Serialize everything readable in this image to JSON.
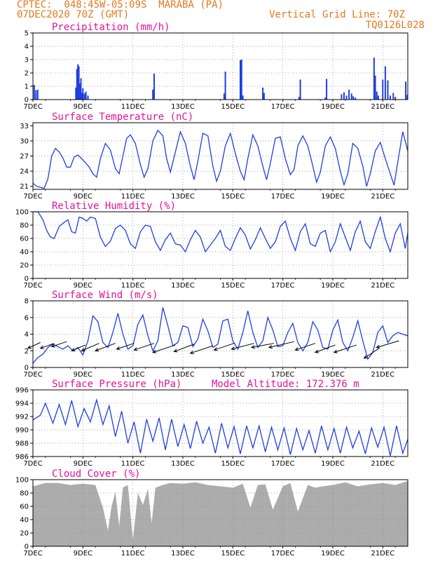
{
  "header": {
    "line1_left": "CPTEC:  048:45W-05:09S  MARABA (PA)",
    "line2_left": "07DEC2020 70Z (GMT)",
    "line1_right": "Vertical Grid Line: 70Z",
    "line2_right": "TQ0126L028"
  },
  "colors": {
    "header": "#e07a1f",
    "title": "#e8109a",
    "series": "#1f3fe0",
    "cloud": "#a8a8a8"
  },
  "x_axis": {
    "unit": "days since 07DEC",
    "range": [
      0,
      15
    ],
    "tick_positions": [
      0,
      2,
      4,
      6,
      8,
      10,
      12,
      14
    ],
    "tick_labels": [
      "7DEC",
      "9DEC",
      "11DEC",
      "13DEC",
      "15DEC",
      "17DEC",
      "19DEC",
      "21DEC"
    ]
  },
  "chart_data": [
    {
      "id": "precip",
      "type": "bar",
      "title": "Precipitation (mm/h)",
      "ylim": [
        0,
        5
      ],
      "yticks": [
        0,
        1,
        2,
        3,
        4,
        5
      ],
      "x": [
        0.05,
        0.12,
        0.19,
        1.72,
        1.76,
        1.8,
        1.84,
        1.88,
        1.92,
        1.96,
        2.0,
        2.06,
        2.12,
        2.2,
        4.8,
        4.85,
        7.65,
        7.7,
        8.3,
        8.35,
        8.4,
        9.2,
        9.25,
        10.65,
        10.7,
        11.7,
        11.75,
        12.35,
        12.45,
        12.55,
        12.65,
        12.75,
        12.82,
        12.9,
        13.65,
        13.7,
        13.76,
        13.82,
        14.0,
        14.1,
        14.2,
        14.3,
        14.42,
        14.5,
        14.92,
        14.98
      ],
      "values": [
        1.1,
        0.7,
        0.75,
        0.9,
        2.3,
        2.65,
        2.5,
        1.2,
        1.6,
        0.5,
        0.85,
        0.45,
        0.6,
        0.3,
        0.75,
        1.95,
        0.45,
        2.1,
        2.95,
        3.0,
        0.3,
        0.9,
        0.5,
        0.2,
        1.5,
        0.15,
        1.55,
        0.4,
        0.55,
        0.3,
        0.75,
        0.45,
        0.25,
        0.15,
        3.15,
        1.8,
        0.6,
        0.3,
        1.5,
        2.5,
        1.45,
        0.3,
        0.5,
        0.2,
        1.35,
        0.35
      ]
    },
    {
      "id": "temp",
      "type": "line",
      "title": "Surface Temperature (nC)",
      "ylim": [
        20.4,
        33.6
      ],
      "yticks": [
        21,
        24,
        27,
        30,
        33
      ],
      "x": [
        0,
        0.15,
        0.3,
        0.45,
        0.6,
        0.75,
        0.9,
        1.05,
        1.2,
        1.35,
        1.5,
        1.65,
        1.8,
        1.95,
        2.1,
        2.25,
        2.4,
        2.55,
        2.7,
        2.9,
        3.1,
        3.3,
        3.45,
        3.6,
        3.75,
        3.9,
        4.1,
        4.3,
        4.45,
        4.6,
        4.8,
        5.0,
        5.2,
        5.35,
        5.5,
        5.7,
        5.9,
        6.1,
        6.3,
        6.45,
        6.6,
        6.8,
        7.0,
        7.2,
        7.35,
        7.5,
        7.7,
        7.9,
        8.1,
        8.3,
        8.45,
        8.6,
        8.8,
        9.0,
        9.2,
        9.35,
        9.5,
        9.7,
        9.9,
        10.1,
        10.3,
        10.45,
        10.6,
        10.8,
        11.0,
        11.2,
        11.35,
        11.5,
        11.7,
        11.9,
        12.1,
        12.3,
        12.45,
        12.6,
        12.8,
        13.0,
        13.2,
        13.35,
        13.5,
        13.7,
        13.9,
        14.1,
        14.3,
        14.45,
        14.6,
        14.8,
        15.0
      ],
      "values": [
        21.6,
        21.0,
        20.8,
        20.6,
        22.5,
        27.0,
        28.5,
        27.8,
        26.6,
        24.8,
        24.8,
        26.8,
        27.2,
        26.5,
        25.7,
        24.8,
        23.5,
        22.8,
        26.5,
        29.5,
        28.2,
        24.5,
        23.5,
        27.0,
        30.5,
        31.2,
        29.5,
        25.3,
        22.8,
        24.5,
        30.0,
        32.1,
        31.0,
        26.5,
        23.8,
        27.8,
        31.8,
        29.5,
        25.0,
        22.3,
        26.0,
        31.5,
        31.0,
        25.0,
        22.0,
        24.0,
        29.0,
        31.5,
        27.5,
        24.0,
        22.3,
        26.5,
        31.2,
        29.0,
        25.0,
        22.3,
        25.5,
        30.5,
        30.8,
        26.5,
        23.3,
        24.3,
        29.0,
        31.0,
        29.0,
        25.0,
        21.8,
        23.8,
        29.0,
        30.8,
        28.5,
        24.0,
        21.3,
        23.5,
        29.5,
        28.5,
        25.0,
        21.0,
        23.5,
        28.0,
        29.7,
        26.5,
        23.5,
        21.2,
        25.8,
        31.8,
        28.0
      ]
    },
    {
      "id": "rh",
      "type": "line",
      "title": "Relative Humidity (%)",
      "ylim": [
        0,
        100
      ],
      "yticks": [
        0,
        20,
        40,
        60,
        80,
        100
      ],
      "x": [
        0,
        0.2,
        0.4,
        0.55,
        0.7,
        0.85,
        1.05,
        1.25,
        1.4,
        1.55,
        1.7,
        1.85,
        2.0,
        2.15,
        2.3,
        2.5,
        2.7,
        2.9,
        3.1,
        3.3,
        3.5,
        3.7,
        3.9,
        4.1,
        4.3,
        4.5,
        4.7,
        4.9,
        5.1,
        5.3,
        5.5,
        5.7,
        5.9,
        6.1,
        6.3,
        6.5,
        6.7,
        6.9,
        7.1,
        7.3,
        7.5,
        7.7,
        7.9,
        8.1,
        8.3,
        8.5,
        8.7,
        8.9,
        9.1,
        9.3,
        9.5,
        9.7,
        9.9,
        10.1,
        10.3,
        10.5,
        10.7,
        10.9,
        11.1,
        11.3,
        11.5,
        11.7,
        11.9,
        12.1,
        12.3,
        12.5,
        12.7,
        12.9,
        13.1,
        13.3,
        13.5,
        13.7,
        13.9,
        14.1,
        14.3,
        14.5,
        14.7,
        14.9,
        15.0
      ],
      "values": [
        100,
        100,
        88,
        72,
        62,
        60,
        78,
        84,
        88,
        70,
        68,
        92,
        90,
        86,
        92,
        90,
        62,
        48,
        56,
        75,
        80,
        72,
        52,
        45,
        70,
        80,
        78,
        55,
        42,
        58,
        68,
        52,
        50,
        40,
        58,
        72,
        62,
        40,
        50,
        60,
        72,
        48,
        42,
        60,
        76,
        65,
        44,
        58,
        76,
        60,
        45,
        55,
        78,
        86,
        60,
        42,
        70,
        82,
        52,
        48,
        68,
        72,
        40,
        55,
        82,
        62,
        42,
        70,
        86,
        55,
        45,
        70,
        92,
        60,
        40,
        68,
        82,
        45,
        68
      ]
    },
    {
      "id": "wind",
      "type": "line",
      "title": "Surface Wind (m/s)",
      "ylim": [
        0,
        8
      ],
      "yticks": [
        0,
        2,
        4,
        6,
        8
      ],
      "x": [
        0,
        0.2,
        0.4,
        0.6,
        0.8,
        1.0,
        1.2,
        1.4,
        1.6,
        1.8,
        2.0,
        2.2,
        2.4,
        2.6,
        2.8,
        3.0,
        3.2,
        3.4,
        3.6,
        3.8,
        4.0,
        4.2,
        4.4,
        4.6,
        4.8,
        5.0,
        5.2,
        5.4,
        5.6,
        5.8,
        6.0,
        6.2,
        6.4,
        6.6,
        6.8,
        7.0,
        7.2,
        7.4,
        7.6,
        7.8,
        8.0,
        8.2,
        8.4,
        8.6,
        8.8,
        9.0,
        9.2,
        9.4,
        9.6,
        9.8,
        10.0,
        10.2,
        10.4,
        10.6,
        10.8,
        11.0,
        11.2,
        11.4,
        11.6,
        11.8,
        12.0,
        12.2,
        12.4,
        12.6,
        12.8,
        13.0,
        13.2,
        13.4,
        13.6,
        13.8,
        14.0,
        14.2,
        14.4,
        14.6,
        14.8,
        15.0
      ],
      "values": [
        0.5,
        1.2,
        1.6,
        2.4,
        2.8,
        2.5,
        2.2,
        2.6,
        2.0,
        2.4,
        1.5,
        3.2,
        6.2,
        5.5,
        3.0,
        2.4,
        4.2,
        6.5,
        4.0,
        2.2,
        2.6,
        5.2,
        6.3,
        3.8,
        2.0,
        3.2,
        7.2,
        5.0,
        2.6,
        3.0,
        5.0,
        4.8,
        2.5,
        3.4,
        5.8,
        4.4,
        2.4,
        2.8,
        5.6,
        5.8,
        3.2,
        2.2,
        4.2,
        6.8,
        4.2,
        2.4,
        3.2,
        6.0,
        4.5,
        2.5,
        2.6,
        4.2,
        5.3,
        3.0,
        2.0,
        3.0,
        5.5,
        4.5,
        2.4,
        2.2,
        4.5,
        5.7,
        3.0,
        2.0,
        3.6,
        5.6,
        3.2,
        1.0,
        1.8,
        4.2,
        5.0,
        3.0,
        3.8,
        4.2,
        4.0,
        3.8
      ],
      "arrows": [
        {
          "x": 0.3,
          "y": 3.0,
          "dx": -0.5,
          "dy": -0.7
        },
        {
          "x": 0.85,
          "y": 2.9,
          "dx": -0.55,
          "dy": -0.6
        },
        {
          "x": 1.35,
          "y": 3.1,
          "dx": -0.6,
          "dy": -0.6
        },
        {
          "x": 2.1,
          "y": 2.7,
          "dx": -0.55,
          "dy": -0.7
        },
        {
          "x": 2.65,
          "y": 2.9,
          "dx": -0.7,
          "dy": -0.9
        },
        {
          "x": 3.3,
          "y": 2.9,
          "dx": -0.8,
          "dy": -0.9
        },
        {
          "x": 4.05,
          "y": 2.9,
          "dx": -0.7,
          "dy": -0.7
        },
        {
          "x": 4.85,
          "y": 2.9,
          "dx": -0.8,
          "dy": -0.8
        },
        {
          "x": 5.7,
          "y": 2.7,
          "dx": -0.9,
          "dy": -0.9
        },
        {
          "x": 6.45,
          "y": 2.8,
          "dx": -0.8,
          "dy": -0.9
        },
        {
          "x": 7.2,
          "y": 2.6,
          "dx": -0.9,
          "dy": -0.9
        },
        {
          "x": 8.05,
          "y": 2.9,
          "dx": -0.8,
          "dy": -0.8
        },
        {
          "x": 8.85,
          "y": 2.9,
          "dx": -0.9,
          "dy": -0.7
        },
        {
          "x": 9.65,
          "y": 2.9,
          "dx": -0.9,
          "dy": -0.5
        },
        {
          "x": 10.45,
          "y": 3.1,
          "dx": -1.0,
          "dy": -0.7
        },
        {
          "x": 11.3,
          "y": 2.9,
          "dx": -0.8,
          "dy": -0.8
        },
        {
          "x": 12.1,
          "y": 2.7,
          "dx": -0.8,
          "dy": -0.9
        },
        {
          "x": 12.95,
          "y": 2.7,
          "dx": -0.9,
          "dy": -0.9
        },
        {
          "x": 13.85,
          "y": 2.3,
          "dx": -0.6,
          "dy": -1.2
        },
        {
          "x": 14.65,
          "y": 3.2,
          "dx": -0.9,
          "dy": -0.8
        }
      ]
    },
    {
      "id": "pres",
      "type": "line",
      "title": "Surface Pressure (hPa)",
      "annotation": "Model Altitude: 172.376 m",
      "ylim": [
        986,
        996
      ],
      "yticks": [
        986,
        988,
        990,
        992,
        994,
        996
      ],
      "x": [
        0,
        0.3,
        0.5,
        0.8,
        1.05,
        1.3,
        1.55,
        1.8,
        2.05,
        2.3,
        2.55,
        2.8,
        3.05,
        3.3,
        3.55,
        3.8,
        4.05,
        4.3,
        4.55,
        4.8,
        5.05,
        5.3,
        5.55,
        5.8,
        6.05,
        6.3,
        6.55,
        6.8,
        7.05,
        7.3,
        7.55,
        7.8,
        8.05,
        8.3,
        8.55,
        8.8,
        9.05,
        9.3,
        9.55,
        9.8,
        10.05,
        10.3,
        10.55,
        10.8,
        11.05,
        11.3,
        11.55,
        11.8,
        12.05,
        12.3,
        12.55,
        12.8,
        13.05,
        13.3,
        13.55,
        13.8,
        14.05,
        14.3,
        14.55,
        14.8,
        15.0
      ],
      "values": [
        991.5,
        992.2,
        994.0,
        991.0,
        993.8,
        990.8,
        994.4,
        990.5,
        993.2,
        991.2,
        994.5,
        990.8,
        993.6,
        989.0,
        992.8,
        988.0,
        991.2,
        986.5,
        991.6,
        988.3,
        991.8,
        987.0,
        991.6,
        987.5,
        990.8,
        987.2,
        991.3,
        988.0,
        990.4,
        986.5,
        991.0,
        987.3,
        990.5,
        986.4,
        990.6,
        987.3,
        990.6,
        986.7,
        990.4,
        987.0,
        990.3,
        986.3,
        990.2,
        987.0,
        989.9,
        986.5,
        990.6,
        987.0,
        990.2,
        986.5,
        990.4,
        987.3,
        989.8,
        986.4,
        990.3,
        987.4,
        990.4,
        986.1,
        990.6,
        986.5,
        988.6
      ]
    },
    {
      "id": "cloud",
      "type": "area",
      "title": "Cloud Cover (%)",
      "ylim": [
        0,
        100
      ],
      "yticks": [
        0,
        20,
        40,
        60,
        80,
        100
      ],
      "x": [
        0,
        0.5,
        1.0,
        1.5,
        2.0,
        2.5,
        2.8,
        3.0,
        3.15,
        3.3,
        3.45,
        3.6,
        3.8,
        4.0,
        4.2,
        4.4,
        4.6,
        4.75,
        4.9,
        5.2,
        5.5,
        6.0,
        6.5,
        7.0,
        7.5,
        8.0,
        8.4,
        8.7,
        9.0,
        9.3,
        9.6,
        10.0,
        10.3,
        10.6,
        11.0,
        11.3,
        11.6,
        12.0,
        12.5,
        13.0,
        13.5,
        14.0,
        14.5,
        15.0
      ],
      "values": [
        90,
        95,
        95,
        92,
        94,
        92,
        58,
        24,
        60,
        82,
        30,
        88,
        92,
        10,
        80,
        62,
        86,
        35,
        88,
        92,
        95,
        94,
        96,
        92,
        90,
        88,
        94,
        58,
        92,
        93,
        55,
        90,
        95,
        52,
        92,
        88,
        90,
        92,
        96,
        90,
        93,
        95,
        92,
        98
      ]
    }
  ]
}
